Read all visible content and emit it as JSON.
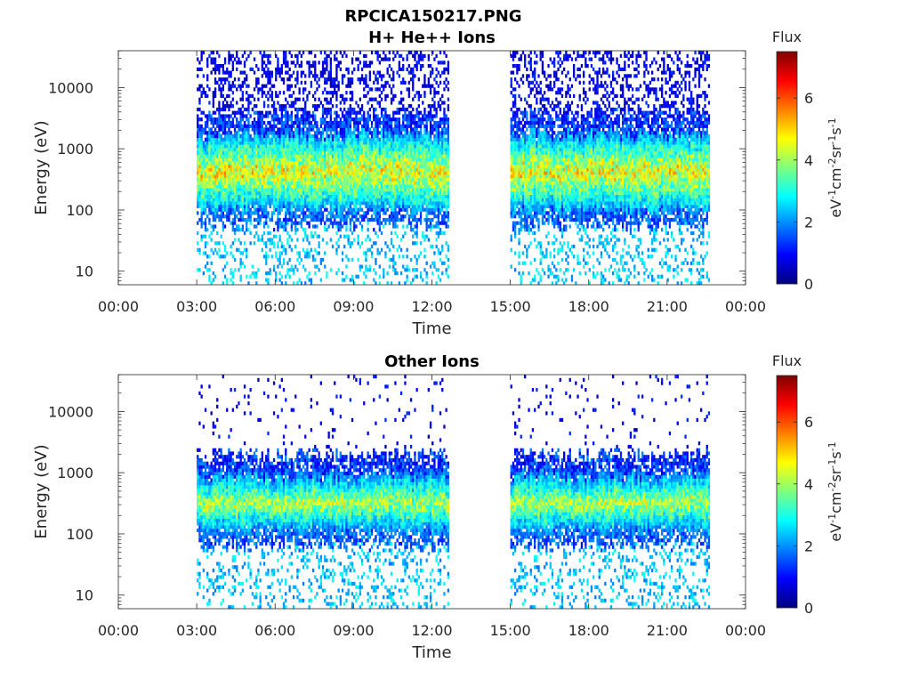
{
  "figure_title": "RPCICA150217.PNG",
  "colormap": [
    "#00007f",
    "#0000ff",
    "#007fff",
    "#00ffff",
    "#7fff7f",
    "#ffff00",
    "#ff7f00",
    "#ff0000",
    "#7f0000"
  ],
  "chart_data": [
    {
      "type": "heatmap",
      "title": "H+ He++ Ions",
      "xlabel": "Time",
      "ylabel": "Energy (eV)",
      "x_ticks": [
        "00:00",
        "03:00",
        "06:00",
        "09:00",
        "12:00",
        "15:00",
        "18:00",
        "21:00",
        "00:00"
      ],
      "x_range_hours": [
        0,
        24
      ],
      "y_scale": "log",
      "y_range": [
        6,
        40000
      ],
      "y_ticks": [
        10,
        100,
        1000,
        10000
      ],
      "y_tick_labels": [
        "10",
        "100",
        "1000",
        "10000"
      ],
      "data_intervals_hours": [
        [
          3.0,
          12.6
        ],
        [
          15.0,
          22.6
        ]
      ],
      "core_band_eV": [
        90,
        1500
      ],
      "peak_flux_in_band": 5,
      "colorbar": {
        "title": "Flux",
        "label": "eV-1cm-2sr-1s-1",
        "range": [
          0,
          7.5
        ],
        "ticks": [
          0,
          2,
          4,
          6
        ],
        "tick_labels": [
          "0",
          "2",
          "4",
          "6"
        ]
      }
    },
    {
      "type": "heatmap",
      "title": "Other Ions",
      "xlabel": "Time",
      "ylabel": "Energy (eV)",
      "x_ticks": [
        "00:00",
        "03:00",
        "06:00",
        "09:00",
        "12:00",
        "15:00",
        "18:00",
        "21:00",
        "00:00"
      ],
      "x_range_hours": [
        0,
        24
      ],
      "y_scale": "log",
      "y_range": [
        6,
        40000
      ],
      "y_ticks": [
        10,
        100,
        1000,
        10000
      ],
      "y_tick_labels": [
        "10",
        "100",
        "1000",
        "10000"
      ],
      "data_intervals_hours": [
        [
          3.0,
          12.6
        ],
        [
          15.0,
          22.6
        ]
      ],
      "core_band_eV": [
        100,
        800
      ],
      "peak_flux_in_band": 4.5,
      "colorbar": {
        "title": "Flux",
        "label": "eV-1cm-2sr-1s-1",
        "range": [
          0,
          7.5
        ],
        "ticks": [
          0,
          2,
          4,
          6
        ],
        "tick_labels": [
          "0",
          "2",
          "4",
          "6"
        ]
      }
    }
  ]
}
